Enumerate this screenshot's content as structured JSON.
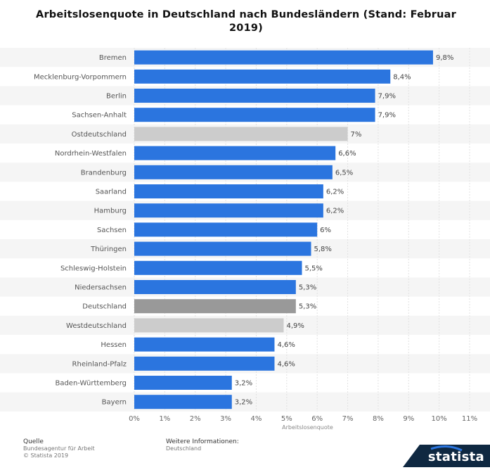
{
  "chart_data": {
    "type": "bar",
    "orientation": "horizontal",
    "title": "Arbeitslosenquote in Deutschland nach Bundesländern (Stand: Februar 2019)",
    "xlabel": "Arbeitslosenquote",
    "xlim": [
      0,
      11
    ],
    "grid": true,
    "categories": [
      "Bremen",
      "Mecklenburg-Vorpommern",
      "Berlin",
      "Sachsen-Anhalt",
      "Ostdeutschland",
      "Nordrhein-Westfalen",
      "Brandenburg",
      "Saarland",
      "Hamburg",
      "Sachsen",
      "Thüringen",
      "Schleswig-Holstein",
      "Niedersachsen",
      "Deutschland",
      "Westdeutschland",
      "Hessen",
      "Rheinland-Pfalz",
      "Baden-Württemberg",
      "Bayern"
    ],
    "values": [
      9.8,
      8.4,
      7.9,
      7.9,
      7.0,
      6.6,
      6.5,
      6.2,
      6.2,
      6.0,
      5.8,
      5.5,
      5.3,
      5.3,
      4.9,
      4.6,
      4.6,
      3.2,
      3.2
    ],
    "value_labels": [
      "9,8%",
      "8,4%",
      "7,9%",
      "7,9%",
      "7%",
      "6,6%",
      "6,5%",
      "6,2%",
      "6,2%",
      "6%",
      "5,8%",
      "5,5%",
      "5,3%",
      "5,3%",
      "4,9%",
      "4,6%",
      "4,6%",
      "3,2%",
      "3,2%"
    ],
    "bar_colors": [
      "#2b75df",
      "#2b75df",
      "#2b75df",
      "#2b75df",
      "#cccccc",
      "#2b75df",
      "#2b75df",
      "#2b75df",
      "#2b75df",
      "#2b75df",
      "#2b75df",
      "#2b75df",
      "#2b75df",
      "#999999",
      "#cccccc",
      "#2b75df",
      "#2b75df",
      "#2b75df",
      "#2b75df"
    ],
    "x_ticks": [
      "0%",
      "1%",
      "2%",
      "3%",
      "4%",
      "5%",
      "6%",
      "7%",
      "8%",
      "9%",
      "10%",
      "11%"
    ]
  },
  "footer": {
    "source_heading": "Quelle",
    "source_lines": [
      "Bundesagentur für Arbeit",
      "© Statista 2019"
    ],
    "info_heading": "Weitere Informationen:",
    "info_lines": [
      "Deutschland"
    ],
    "logo_text": "statista"
  },
  "colors": {
    "accent": "#2b75df",
    "logo_bg": "#0f2841"
  }
}
